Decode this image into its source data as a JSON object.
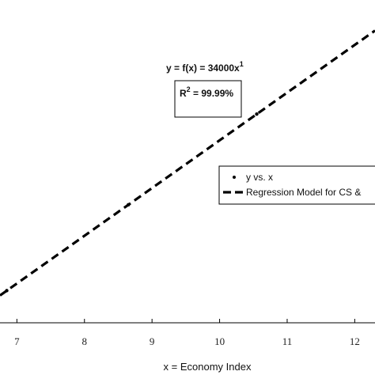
{
  "chart_data": {
    "type": "scatter",
    "xlabel": "x = Economy Index",
    "ylabel": "",
    "title": "",
    "xlim": [
      6.75,
      12.3
    ],
    "ylim": [
      210000,
      440000
    ],
    "x_ticks": [
      7,
      8,
      9,
      10,
      11,
      12
    ],
    "x_tick_labels": [
      "7",
      "8",
      "9",
      "10",
      "11",
      "12"
    ],
    "grid": false,
    "series": [
      {
        "name": "y vs. x",
        "kind": "points",
        "x": [
          6.85,
          8.65,
          10.55
        ],
        "y": [
          232900,
          294100,
          358700
        ]
      },
      {
        "name": "Regression Model for CS &",
        "kind": "line",
        "dash": "dashed",
        "x": [
          6.75,
          12.3
        ],
        "y": [
          229500,
          418200
        ]
      }
    ],
    "annotations": {
      "equation_main": "y = f(x) = 34000x",
      "equation_exp": "1",
      "r2_prefix": "R",
      "r2_exp": "2",
      "r2_value": " = 99.99%"
    },
    "legend": {
      "placement": "right"
    }
  }
}
